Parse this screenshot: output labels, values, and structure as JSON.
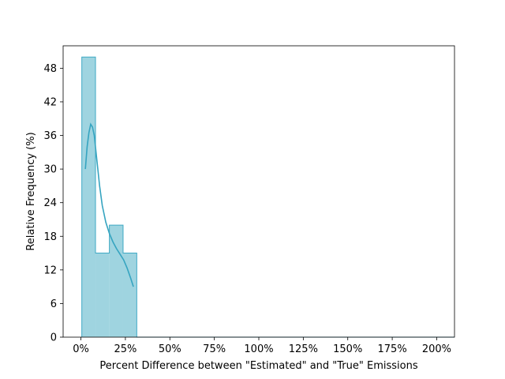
{
  "chart_data": {
    "type": "bar",
    "title": "",
    "xlabel": "Percent Difference between \"Estimated\" and \"True\" Emissions",
    "ylabel": "Relative Frequency (%)",
    "x_unit": "%",
    "xlim": [
      -10,
      210
    ],
    "ylim": [
      0,
      52
    ],
    "x_ticks": [
      0,
      25,
      50,
      75,
      100,
      125,
      150,
      175,
      200
    ],
    "x_tick_labels": [
      "0%",
      "25%",
      "50%",
      "75%",
      "100%",
      "125%",
      "150%",
      "175%",
      "200%"
    ],
    "y_ticks": [
      0,
      6,
      12,
      18,
      24,
      30,
      36,
      42,
      48
    ],
    "y_tick_labels": [
      "0",
      "6",
      "12",
      "18",
      "24",
      "30",
      "36",
      "42",
      "48"
    ],
    "grid": false,
    "legend": "none",
    "bins": [
      {
        "x0": 0.5,
        "x1": 8.2,
        "value": 50
      },
      {
        "x0": 8.2,
        "x1": 16.0,
        "value": 15
      },
      {
        "x0": 16.0,
        "x1": 23.7,
        "value": 20
      },
      {
        "x0": 23.7,
        "x1": 31.4,
        "value": 15
      }
    ],
    "kde": {
      "x": [
        2.5,
        3.5,
        4.5,
        5.5,
        6.5,
        7.5,
        8.5,
        9.5,
        10.5,
        12,
        14,
        16,
        18,
        20,
        22,
        24,
        26,
        28,
        29.5
      ],
      "y": [
        30,
        34,
        36.5,
        38,
        37.5,
        36,
        33,
        30,
        27,
        23.5,
        20.5,
        18.5,
        17,
        15.8,
        14.8,
        13.8,
        12.3,
        10.5,
        9
      ]
    },
    "colors": {
      "fill": "#9fd4e0",
      "edge": "#3fa9c4",
      "line": "#36a4c0"
    }
  }
}
